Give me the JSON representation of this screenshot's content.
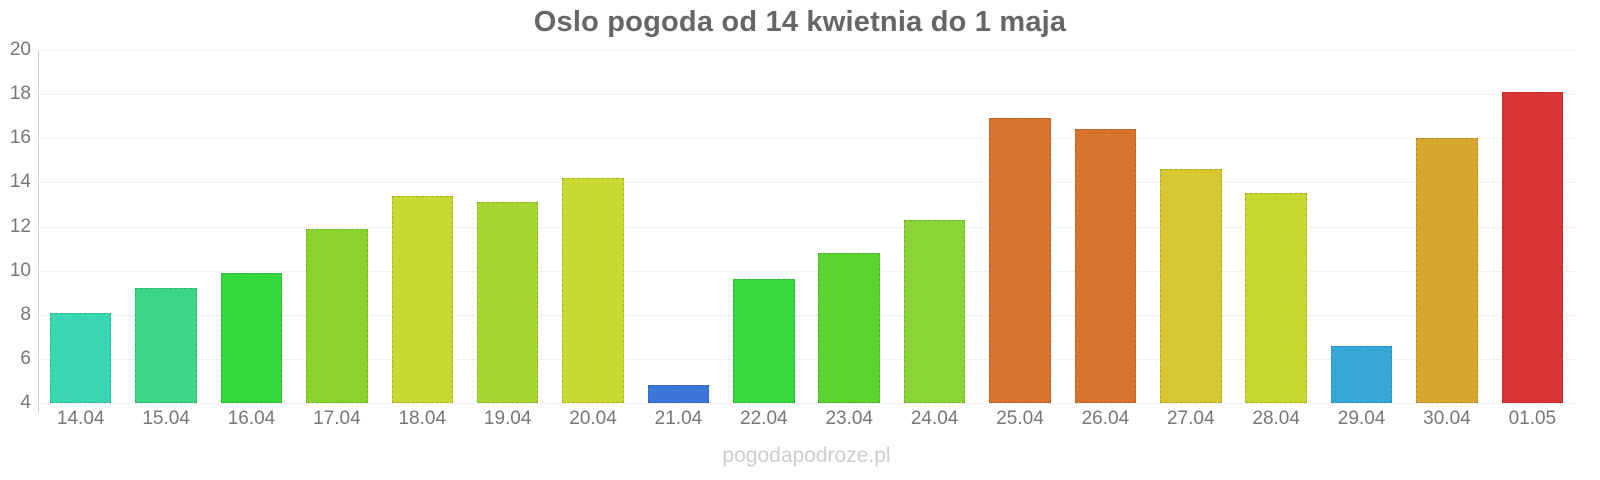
{
  "title": "Oslo pogoda od 14 kwietnia do 1 maja",
  "watermark": "pogodapodroze.pl",
  "colors": {
    "title_text": "#666666",
    "axis_label_text": "#777777",
    "axis_line": "#cccccc",
    "gridline": "#e7e7e7",
    "watermark_text": "#cdcdcd",
    "background": "#ffffff"
  },
  "chart_data": {
    "type": "bar",
    "title": "Oslo pogoda od 14 kwietnia do 1 maja",
    "xlabel": "",
    "ylabel": "",
    "categories": [
      "14.04",
      "15.04",
      "16.04",
      "17.04",
      "18.04",
      "19.04",
      "20.04",
      "21.04",
      "22.04",
      "23.04",
      "24.04",
      "25.04",
      "26.04",
      "27.04",
      "28.04",
      "29.04",
      "30.04",
      "01.05"
    ],
    "values": [
      8.1,
      9.2,
      9.9,
      11.9,
      13.4,
      13.1,
      14.2,
      4.8,
      9.6,
      10.8,
      12.3,
      16.9,
      16.4,
      14.6,
      13.5,
      6.6,
      16.0,
      18.1
    ],
    "bar_colors": [
      "#3ad8b2",
      "#3bd687",
      "#35d83c",
      "#8ad32f",
      "#c9d832",
      "#a8d630",
      "#c9d832",
      "#3b76d8",
      "#38d83f",
      "#5ad52f",
      "#8ad435",
      "#d8732e",
      "#d8732e",
      "#d6c832",
      "#c6d72f",
      "#36a8d8",
      "#d8a52e",
      "#d83434"
    ],
    "ylim": [
      4,
      20
    ],
    "yticks": [
      4,
      6,
      8,
      10,
      12,
      14,
      16,
      18,
      20
    ],
    "grid": true,
    "legend": false
  }
}
